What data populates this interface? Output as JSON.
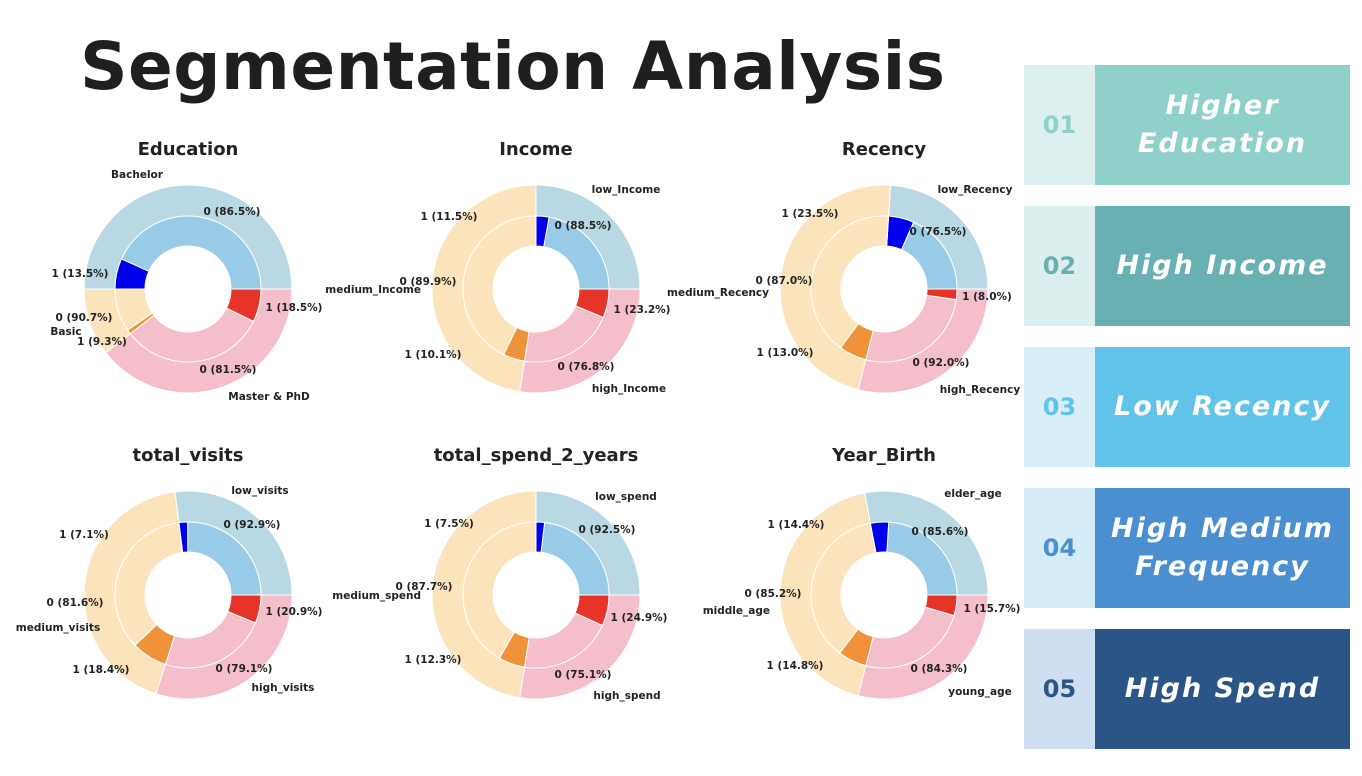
{
  "page": {
    "title": "Segmentation Analysis"
  },
  "colors": {
    "outer": [
      "#b8d8e4",
      "#fbe4bc",
      "#f4bfcb"
    ],
    "inner0": [
      "#97cbe8",
      "#fbe4bc",
      "#f4bfcb"
    ],
    "inner1": [
      "#0000ee",
      "#f0923a",
      "#e63428"
    ]
  },
  "chart_data": [
    {
      "type": "pie",
      "title": "Education",
      "groups": [
        "Bachelor",
        "Basic",
        "Master & PhD"
      ],
      "group_sizes": [
        50.0,
        10.5,
        39.5
      ],
      "inner": [
        {
          "group": "Bachelor",
          "label": "0",
          "pct": 86.5
        },
        {
          "group": "Bachelor",
          "label": "1",
          "pct": 13.5
        },
        {
          "group": "Basic",
          "label": "0",
          "pct": 90.7
        },
        {
          "group": "Basic",
          "label": "1",
          "pct": 9.3
        },
        {
          "group": "Master & PhD",
          "label": "0",
          "pct": 81.5
        },
        {
          "group": "Master & PhD",
          "label": "1",
          "pct": 18.5
        }
      ],
      "texts": {
        "g0": "Bachelor",
        "g1": "Basic",
        "g2": "Master & PhD",
        "a0": "0 (86.5%)",
        "a1": "1 (13.5%)",
        "b0": "0 (90.7%)",
        "b1": "1 (9.3%)",
        "c0": "0 (81.5%)",
        "c1": "1 (18.5%)"
      }
    },
    {
      "type": "pie",
      "title": "Income",
      "groups": [
        "low_Income",
        "medium_Income",
        "high_Income"
      ],
      "group_sizes": [
        25.0,
        47.5,
        27.5
      ],
      "inner": [
        {
          "group": "low_Income",
          "label": "0",
          "pct": 88.5
        },
        {
          "group": "low_Income",
          "label": "1",
          "pct": 11.5
        },
        {
          "group": "medium_Income",
          "label": "0",
          "pct": 89.9
        },
        {
          "group": "medium_Income",
          "label": "1",
          "pct": 10.1
        },
        {
          "group": "high_Income",
          "label": "0",
          "pct": 76.8
        },
        {
          "group": "high_Income",
          "label": "1",
          "pct": 23.2
        }
      ],
      "texts": {
        "g0": "low_Income",
        "g1": "medium_Income",
        "g2": "high_Income",
        "a0": "0 (88.5%)",
        "a1": "1 (11.5%)",
        "b0": "0 (89.9%)",
        "b1": "1 (10.1%)",
        "c0": "0 (76.8%)",
        "c1": "1 (23.2%)"
      }
    },
    {
      "type": "pie",
      "title": "Recency",
      "groups": [
        "low_Recency",
        "medium_Recency",
        "high_Recency"
      ],
      "group_sizes": [
        24.0,
        47.0,
        29.0
      ],
      "inner": [
        {
          "group": "low_Recency",
          "label": "0",
          "pct": 76.5
        },
        {
          "group": "low_Recency",
          "label": "1",
          "pct": 23.5
        },
        {
          "group": "medium_Recency",
          "label": "0",
          "pct": 87.0
        },
        {
          "group": "medium_Recency",
          "label": "1",
          "pct": 13.0
        },
        {
          "group": "high_Recency",
          "label": "0",
          "pct": 92.0
        },
        {
          "group": "high_Recency",
          "label": "1",
          "pct": 8.0
        }
      ],
      "texts": {
        "g0": "low_Recency",
        "g1": "medium_Recency",
        "g2": "high_Recency",
        "a0": "0 (76.5%)",
        "a1": "1 (23.5%)",
        "b0": "0 (87.0%)",
        "b1": "1 (13.0%)",
        "c0": "0 (92.0%)",
        "c1": "1 (8.0%)"
      }
    },
    {
      "type": "pie",
      "title": "total_visits",
      "groups": [
        "low_visits",
        "medium_visits",
        "high_visits"
      ],
      "group_sizes": [
        27.0,
        43.0,
        30.0
      ],
      "inner": [
        {
          "group": "low_visits",
          "label": "0",
          "pct": 92.9
        },
        {
          "group": "low_visits",
          "label": "1",
          "pct": 7.1
        },
        {
          "group": "medium_visits",
          "label": "0",
          "pct": 81.6
        },
        {
          "group": "medium_visits",
          "label": "1",
          "pct": 18.4
        },
        {
          "group": "high_visits",
          "label": "0",
          "pct": 79.1
        },
        {
          "group": "high_visits",
          "label": "1",
          "pct": 20.9
        }
      ],
      "texts": {
        "g0": "low_visits",
        "g1": "medium_visits",
        "g2": "high_visits",
        "a0": "0 (92.9%)",
        "a1": "1 (7.1%)",
        "b0": "0 (81.6%)",
        "b1": "1 (18.4%)",
        "c0": "0 (79.1%)",
        "c1": "1 (20.9%)"
      }
    },
    {
      "type": "pie",
      "title": "total_spend_2_years",
      "groups": [
        "low_spend",
        "medium_spend",
        "high_spend"
      ],
      "group_sizes": [
        25.0,
        47.5,
        27.5
      ],
      "inner": [
        {
          "group": "low_spend",
          "label": "0",
          "pct": 92.5
        },
        {
          "group": "low_spend",
          "label": "1",
          "pct": 7.5
        },
        {
          "group": "medium_spend",
          "label": "0",
          "pct": 87.7
        },
        {
          "group": "medium_spend",
          "label": "1",
          "pct": 12.3
        },
        {
          "group": "high_spend",
          "label": "0",
          "pct": 75.1
        },
        {
          "group": "high_spend",
          "label": "1",
          "pct": 24.9
        }
      ],
      "texts": {
        "g0": "low_spend",
        "g1": "medium_spend",
        "g2": "high_spend",
        "a0": "0 (92.5%)",
        "a1": "1 (7.5%)",
        "b0": "0 (87.7%)",
        "b1": "1 (12.3%)",
        "c0": "0 (75.1%)",
        "c1": "1 (24.9%)"
      }
    },
    {
      "type": "pie",
      "title": "Year_Birth",
      "groups": [
        "elder_age",
        "middle_age",
        "young_age"
      ],
      "group_sizes": [
        28.0,
        43.0,
        29.0
      ],
      "inner": [
        {
          "group": "elder_age",
          "label": "0",
          "pct": 85.6
        },
        {
          "group": "elder_age",
          "label": "1",
          "pct": 14.4
        },
        {
          "group": "middle_age",
          "label": "0",
          "pct": 85.2
        },
        {
          "group": "middle_age",
          "label": "1",
          "pct": 14.8
        },
        {
          "group": "young_age",
          "label": "0",
          "pct": 84.3
        },
        {
          "group": "young_age",
          "label": "1",
          "pct": 15.7
        }
      ],
      "texts": {
        "g0": "elder_age",
        "g1": "middle_age",
        "g2": "young_age",
        "a0": "0 (85.6%)",
        "a1": "1 (14.4%)",
        "b0": "0 (85.2%)",
        "b1": "1 (14.8%)",
        "c0": "0 (84.3%)",
        "c1": "1 (15.7%)"
      }
    }
  ],
  "cards": [
    {
      "number": "01",
      "line1": "Higher",
      "line2": "Education",
      "num_bg": "#ddf0ef",
      "num_fg": "#8fd0cb",
      "label_bg": "#8fd0cb"
    },
    {
      "number": "02",
      "line1": "High Income",
      "line2": "",
      "num_bg": "#dcefef",
      "num_fg": "#68b0b2",
      "label_bg": "#68b0b2"
    },
    {
      "number": "03",
      "line1": "Low Recency",
      "line2": "",
      "num_bg": "#d8eff9",
      "num_fg": "#62c3ea",
      "label_bg": "#62c3ea"
    },
    {
      "number": "04",
      "line1": "High Medium",
      "line2": "Frequency",
      "num_bg": "#d6ebf8",
      "num_fg": "#4a8fcf",
      "label_bg": "#4a8fcf"
    },
    {
      "number": "05",
      "line1": "High Spend",
      "line2": "",
      "num_bg": "#cfdff1",
      "num_fg": "#2a5586",
      "label_bg": "#2a5586"
    }
  ]
}
